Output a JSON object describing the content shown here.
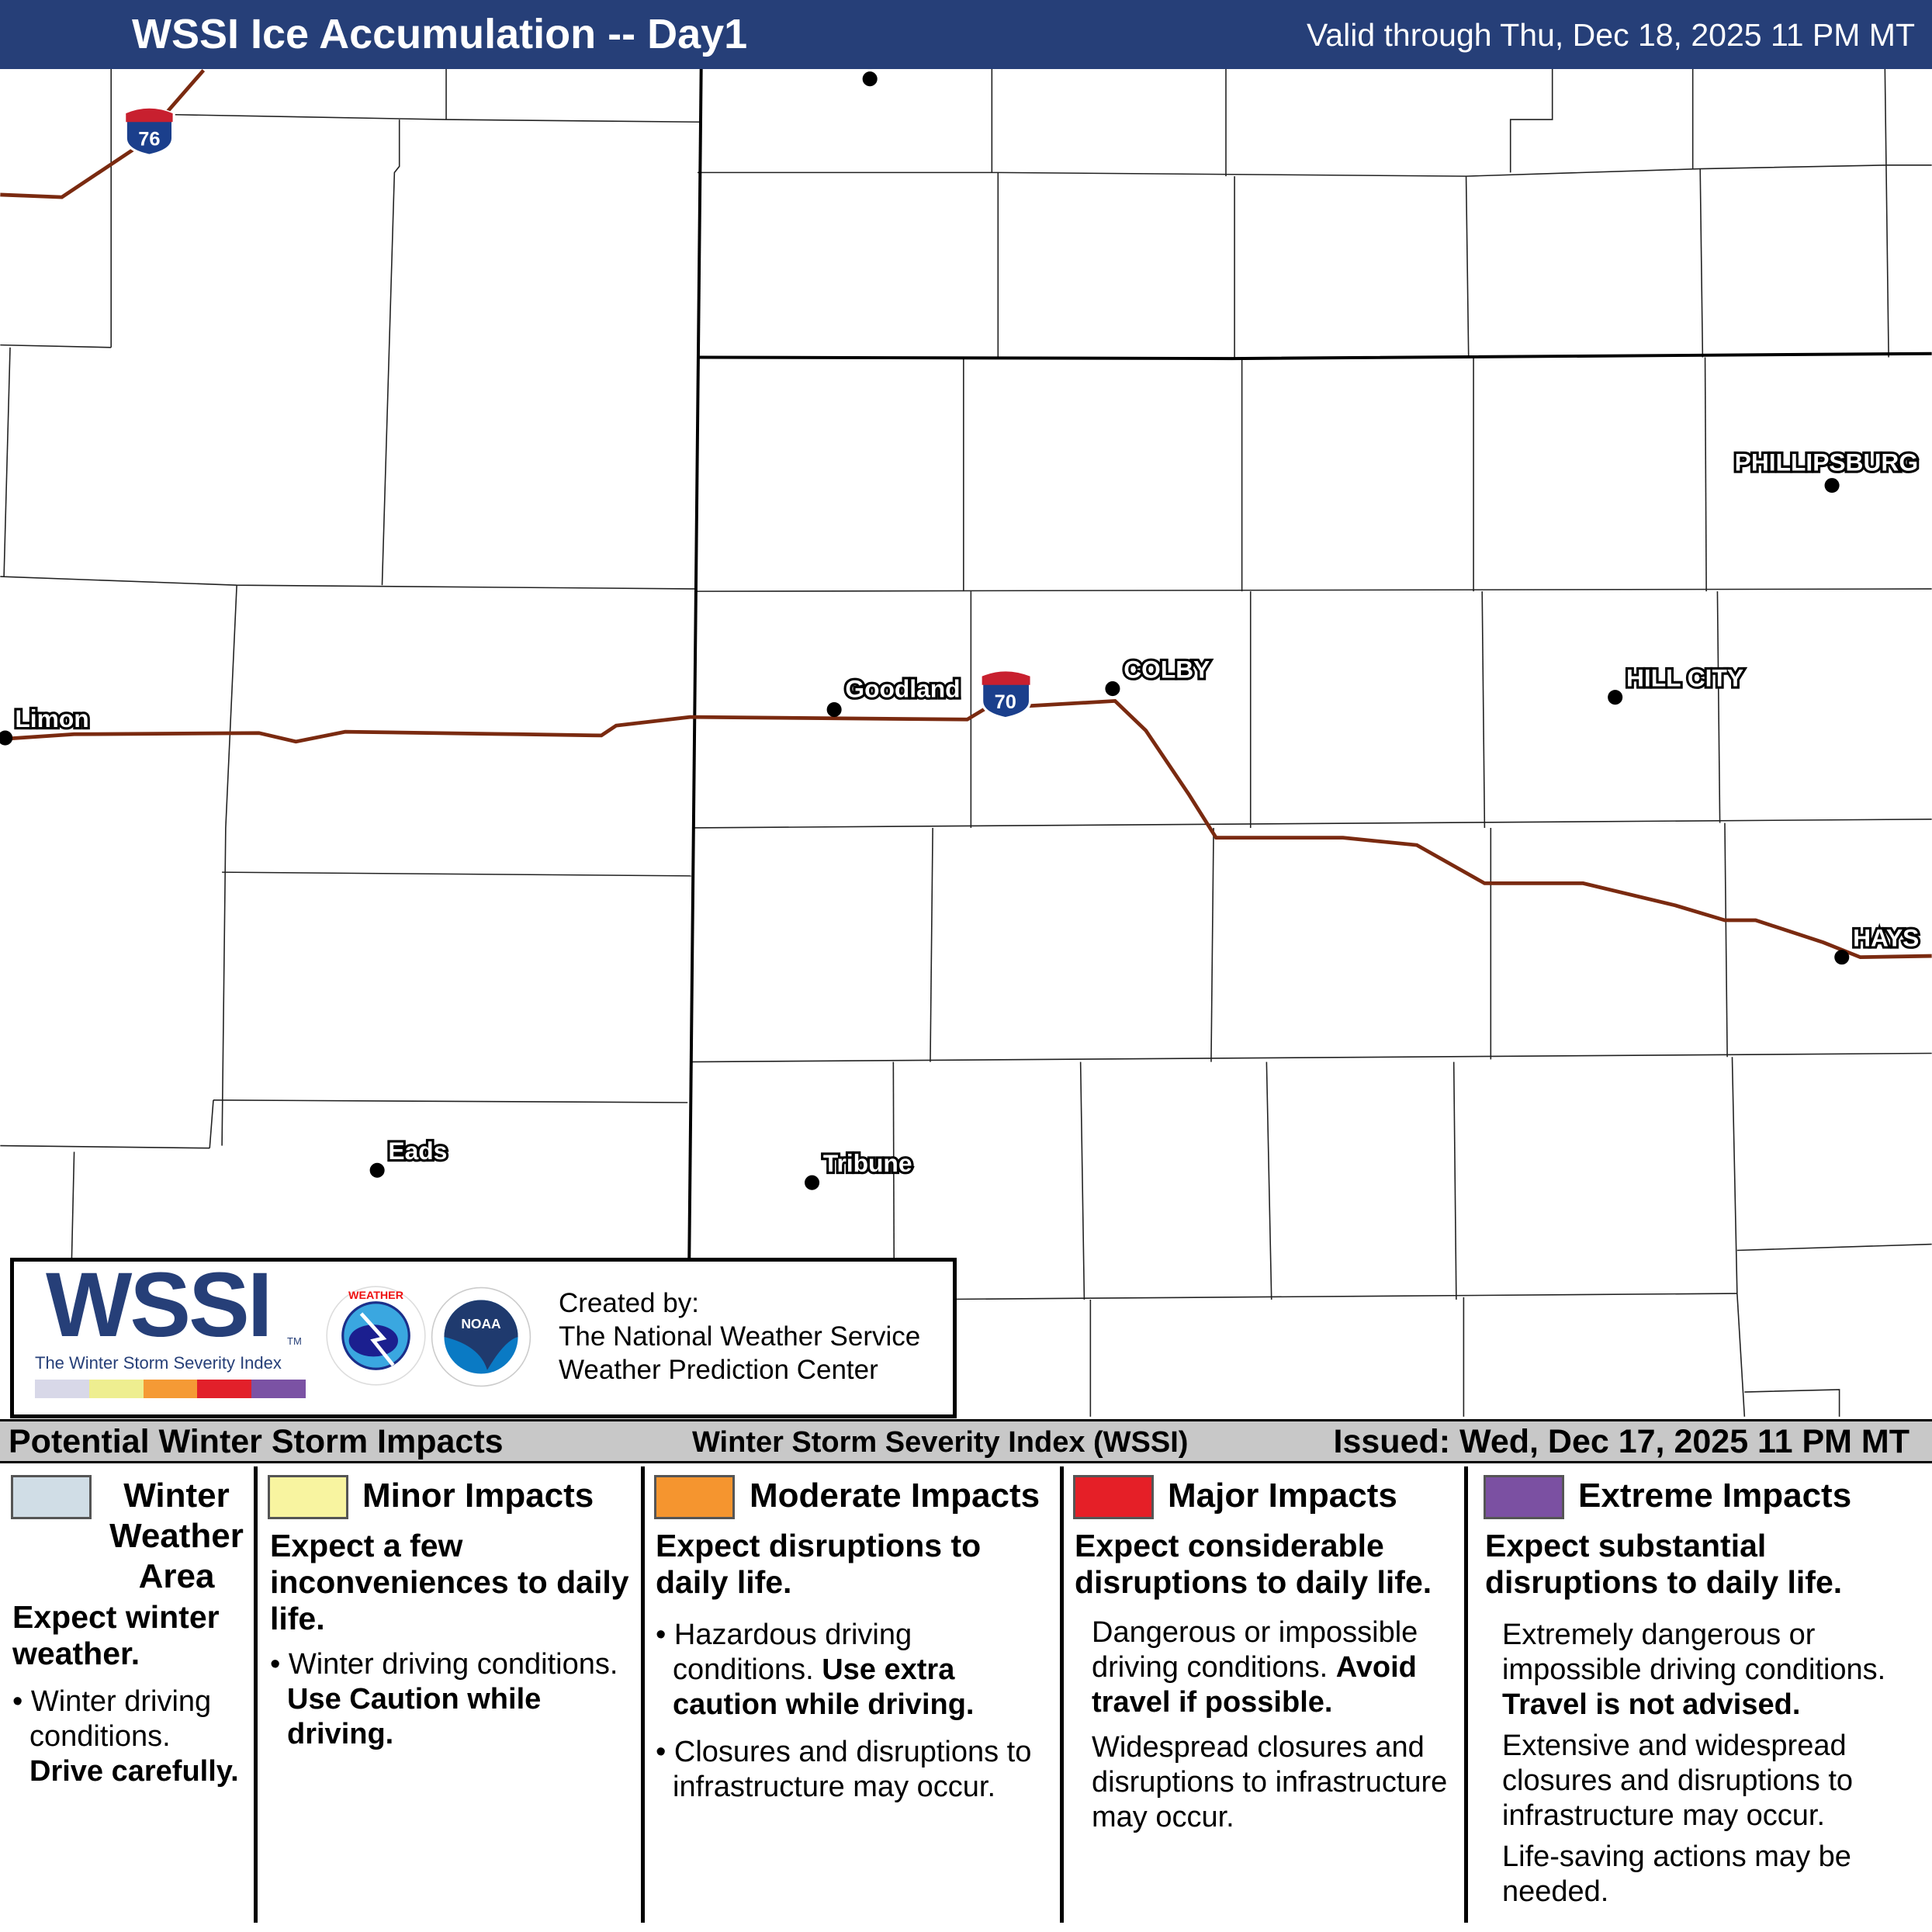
{
  "header": {
    "title": "WSSI Ice Accumulation -- Day1",
    "valid": "Valid through Thu, Dec 18, 2025 11 PM MT"
  },
  "map": {
    "cities": [
      {
        "name": "Limon"
      },
      {
        "name": "Goodland"
      },
      {
        "name": "COLBY"
      },
      {
        "name": "HILL CITY"
      },
      {
        "name": "PHILLIPSBURG"
      },
      {
        "name": "HAYS"
      },
      {
        "name": "Eads"
      },
      {
        "name": "Tribune"
      }
    ],
    "shields": [
      {
        "label": "76"
      },
      {
        "label": "70"
      }
    ],
    "road_color": "#7a2a10"
  },
  "logo": {
    "wssi": "WSSI",
    "tm": "TM",
    "subtitle": "The Winter Storm Severity Index",
    "colors": [
      "#d8d8e8",
      "#eeee90",
      "#f59a35",
      "#e2202a",
      "#7b52a4"
    ],
    "created_by": "Created by:",
    "org1": "The National Weather Service",
    "org2": "Weather Prediction Center",
    "nws": "NATIONAL WEATHER SERVICE",
    "noaa": "NOAA"
  },
  "strip": {
    "left": "Potential Winter Storm Impacts",
    "center": "Winter Storm Severity Index (WSSI)",
    "right": "Issued: Wed, Dec 17, 2025 11 PM MT"
  },
  "legend": [
    {
      "title": "Winter Weather Area",
      "color": "#d0dde6",
      "lead": "Expect winter weather.",
      "bullet1": "Winter driving conditions.",
      "bullet1_bold": "Drive carefully."
    },
    {
      "title": "Minor Impacts",
      "color": "#f8f4a0",
      "lead": "Expect a few inconveniences to daily life.",
      "bullet1": "Winter driving conditions.",
      "bullet1_bold": "Use Caution while driving."
    },
    {
      "title": "Moderate Impacts",
      "color": "#f5952f",
      "lead": "Expect disruptions to daily life.",
      "bullet1": "Hazardous driving conditions.",
      "bullet1_bold": "Use extra caution while driving.",
      "bullet2": "Closures and disruptions to infrastructure may occur."
    },
    {
      "title": "Major Impacts",
      "color": "#e51f27",
      "lead": "Expect considerable disruptions to daily life.",
      "p1": "Dangerous or impossible driving conditions.",
      "p1_bold": "Avoid travel if possible.",
      "p2": "Widespread closures and disruptions to infrastructure may occur."
    },
    {
      "title": "Extreme Impacts",
      "color": "#7b50a2",
      "lead": "Expect substantial disruptions to daily life.",
      "p1": "Extremely dangerous or impossible driving conditions.",
      "p1_bold": "Travel is not advised.",
      "p2": "Extensive and widespread closures and disruptions to infrastructure may occur.",
      "p3": "Life-saving actions may be needed."
    }
  ]
}
